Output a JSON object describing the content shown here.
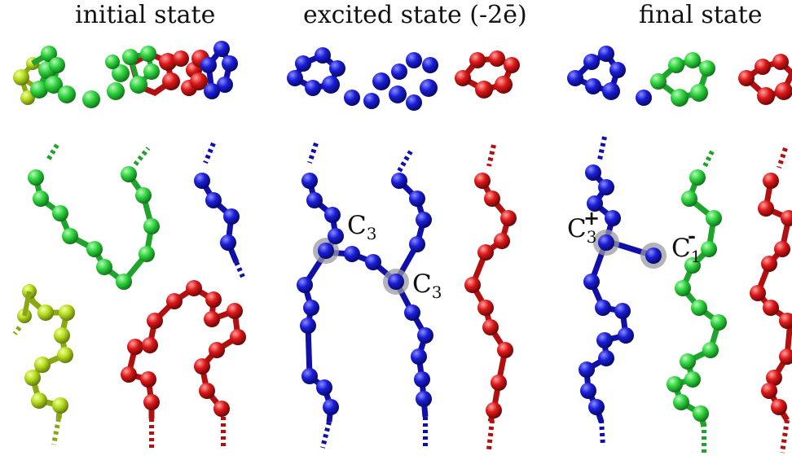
{
  "panels": [
    {
      "title": "initial state"
    },
    {
      "title": "excited state (-2ē)"
    },
    {
      "title": "final state"
    }
  ],
  "labels": {
    "c3_a": {
      "main": "C",
      "sub": "3"
    },
    "c3_b": {
      "main": "C",
      "sub": "3"
    },
    "c3_plus": {
      "main": "C",
      "sub": "3",
      "charge": "+"
    },
    "c1_minus": {
      "main": "C",
      "sub": "1",
      "charge": "-"
    }
  },
  "colors": {
    "green": "#29cc3c",
    "lime": "#a9d418",
    "blue": "#1418c8",
    "red": "#d41818",
    "halo": "#9a9aa2"
  }
}
